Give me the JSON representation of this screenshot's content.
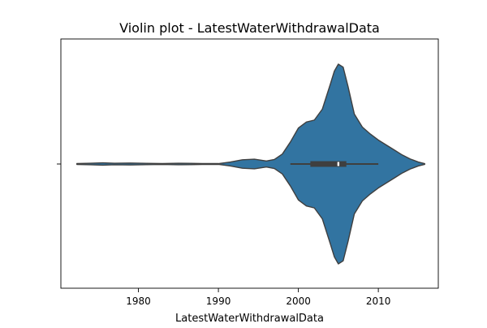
{
  "chart_data": {
    "type": "violin",
    "title": "Violin plot - LatestWaterWithdrawalData",
    "xlabel": "LatestWaterWithdrawalData",
    "ylabel": "",
    "orientation": "horizontal",
    "xlim": [
      1970.3,
      2017.5
    ],
    "xticks": [
      1980,
      1990,
      2000,
      2010
    ],
    "xtick_labels": [
      "1980",
      "1990",
      "2000",
      "2010"
    ],
    "colors": {
      "body": "#3274a1",
      "edge": "#3f3f3f",
      "box": "#3f3f3f",
      "median": "#ffffff"
    },
    "density": [
      [
        1972.3,
        0.004
      ],
      [
        1974.0,
        0.008
      ],
      [
        1975.5,
        0.012
      ],
      [
        1977.0,
        0.008
      ],
      [
        1979.0,
        0.01
      ],
      [
        1981.0,
        0.007
      ],
      [
        1983.0,
        0.004
      ],
      [
        1985.0,
        0.008
      ],
      [
        1986.5,
        0.007
      ],
      [
        1988.0,
        0.004
      ],
      [
        1990.0,
        0.004
      ],
      [
        1991.5,
        0.02
      ],
      [
        1993.0,
        0.042
      ],
      [
        1994.5,
        0.048
      ],
      [
        1996.0,
        0.03
      ],
      [
        1997.0,
        0.045
      ],
      [
        1998.0,
        0.1
      ],
      [
        1999.0,
        0.22
      ],
      [
        2000.0,
        0.36
      ],
      [
        2001.0,
        0.42
      ],
      [
        2002.0,
        0.44
      ],
      [
        2003.0,
        0.55
      ],
      [
        2004.0,
        0.8
      ],
      [
        2004.5,
        0.93
      ],
      [
        2005.0,
        1.0
      ],
      [
        2005.6,
        0.97
      ],
      [
        2006.2,
        0.78
      ],
      [
        2007.0,
        0.5
      ],
      [
        2008.0,
        0.37
      ],
      [
        2009.0,
        0.3
      ],
      [
        2010.0,
        0.24
      ],
      [
        2011.0,
        0.19
      ],
      [
        2012.0,
        0.14
      ],
      [
        2013.0,
        0.09
      ],
      [
        2014.0,
        0.05
      ],
      [
        2015.0,
        0.02
      ],
      [
        2015.8,
        0.004
      ]
    ],
    "box": {
      "whisker_low": 1999.0,
      "q1": 2001.5,
      "median": 2005.0,
      "q3": 2006.0,
      "whisker_high": 2010.0
    }
  }
}
